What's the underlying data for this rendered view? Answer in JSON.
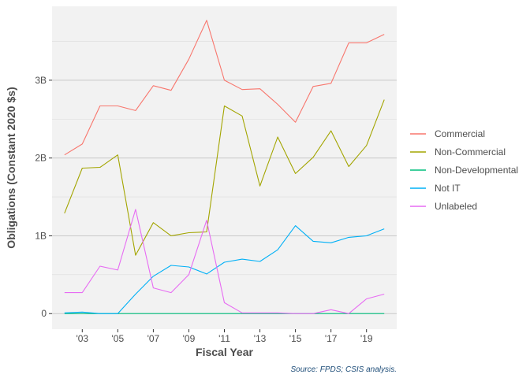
{
  "chart_data": {
    "type": "line",
    "xlabel": "Fiscal Year",
    "ylabel": "Obligations (Constant 2020 $s)",
    "caption": "Source: FPDS; CSIS analysis.",
    "xlim": [
      2001.3,
      2020.7
    ],
    "ylim": [
      -0.2,
      3.95
    ],
    "x_ticks": [
      {
        "value": 2003,
        "label": "'03"
      },
      {
        "value": 2005,
        "label": "'05"
      },
      {
        "value": 2007,
        "label": "'07"
      },
      {
        "value": 2009,
        "label": "'09"
      },
      {
        "value": 2011,
        "label": "'11"
      },
      {
        "value": 2013,
        "label": "'13"
      },
      {
        "value": 2015,
        "label": "'15"
      },
      {
        "value": 2017,
        "label": "'17"
      },
      {
        "value": 2019,
        "label": "'19"
      }
    ],
    "y_ticks": [
      {
        "value": 0,
        "label": "0"
      },
      {
        "value": 1,
        "label": "1B"
      },
      {
        "value": 2,
        "label": "2B"
      },
      {
        "value": 3,
        "label": "3B"
      }
    ],
    "grid": true,
    "legend_position": "right",
    "x": [
      2002,
      2003,
      2004,
      2005,
      2006,
      2007,
      2008,
      2009,
      2010,
      2011,
      2012,
      2013,
      2014,
      2015,
      2016,
      2017,
      2018,
      2019,
      2020
    ],
    "series": [
      {
        "name": "Commercial",
        "color": "#F8766D",
        "values": [
          2.04,
          2.18,
          2.67,
          2.67,
          2.61,
          2.93,
          2.87,
          3.27,
          3.77,
          3.0,
          2.88,
          2.89,
          2.69,
          2.46,
          2.92,
          2.96,
          3.48,
          3.48,
          3.59
        ]
      },
      {
        "name": "Non-Commercial",
        "color": "#A3A500",
        "values": [
          1.29,
          1.87,
          1.88,
          2.04,
          0.75,
          1.17,
          1.0,
          1.04,
          1.05,
          2.67,
          2.54,
          1.64,
          2.27,
          1.8,
          2.01,
          2.35,
          1.89,
          2.16,
          2.75
        ]
      },
      {
        "name": "Non-Developmental",
        "color": "#00BF7D",
        "values": [
          0.0,
          0.0,
          0.0,
          0.0,
          0.0,
          0.0,
          0.0,
          0.0,
          0.0,
          0.0,
          0.0,
          0.0,
          0.0,
          0.0,
          0.0,
          0.0,
          0.0,
          0.0,
          0.0
        ]
      },
      {
        "name": "Not IT",
        "color": "#00B0F6",
        "values": [
          0.01,
          0.02,
          0.0,
          0.0,
          0.25,
          0.48,
          0.62,
          0.6,
          0.51,
          0.66,
          0.7,
          0.67,
          0.82,
          1.13,
          0.93,
          0.91,
          0.98,
          1.0,
          1.09
        ]
      },
      {
        "name": "Unlabeled",
        "color": "#E76BF3",
        "values": [
          0.27,
          0.27,
          0.61,
          0.56,
          1.34,
          0.33,
          0.27,
          0.5,
          1.2,
          0.14,
          0.01,
          0.01,
          0.01,
          0.0,
          0.0,
          0.05,
          0.0,
          0.19,
          0.25
        ]
      }
    ]
  }
}
